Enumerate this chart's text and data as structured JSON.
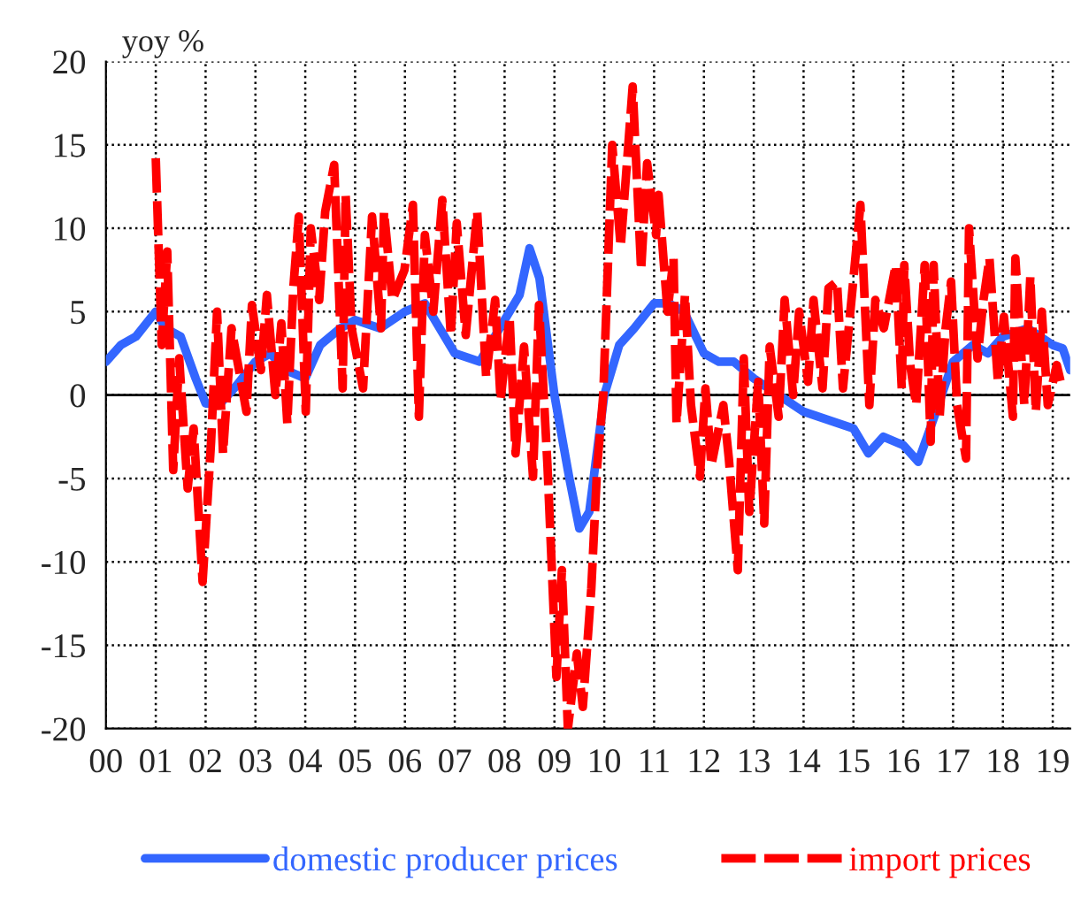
{
  "chart_data": {
    "type": "line",
    "ylabel": "yoy %",
    "xlim": [
      2000,
      2019.35
    ],
    "ylim": [
      -20,
      20
    ],
    "yticks": [
      -20,
      -15,
      -10,
      -5,
      0,
      5,
      10,
      15,
      20
    ],
    "xticks": [
      {
        "value": 2000,
        "label": "00"
      },
      {
        "value": 2001,
        "label": "01"
      },
      {
        "value": 2002,
        "label": "02"
      },
      {
        "value": 2003,
        "label": "03"
      },
      {
        "value": 2004,
        "label": "04"
      },
      {
        "value": 2005,
        "label": "05"
      },
      {
        "value": 2006,
        "label": "06"
      },
      {
        "value": 2007,
        "label": "07"
      },
      {
        "value": 2008,
        "label": "08"
      },
      {
        "value": 2009,
        "label": "09"
      },
      {
        "value": 2010,
        "label": "10"
      },
      {
        "value": 2011,
        "label": "11"
      },
      {
        "value": 2012,
        "label": "12"
      },
      {
        "value": 2013,
        "label": "13"
      },
      {
        "value": 2014,
        "label": "14"
      },
      {
        "value": 2015,
        "label": "15"
      },
      {
        "value": 2016,
        "label": "16"
      },
      {
        "value": 2017,
        "label": "17"
      },
      {
        "value": 2018,
        "label": "18"
      },
      {
        "value": 2019,
        "label": "19"
      }
    ],
    "grid": true,
    "legend": "bottom",
    "ref_lines": [
      {
        "axis": "y",
        "value": 0,
        "color": "#000000",
        "line_style": "solid"
      }
    ],
    "series": [
      {
        "name": "domestic producer prices",
        "color": "#3366ff",
        "line_style": "solid",
        "x": [
          2000.0,
          2000.3,
          2000.6,
          2001.0,
          2001.2,
          2001.5,
          2001.8,
          2002.0,
          2002.3,
          2002.6,
          2003.0,
          2003.3,
          2003.6,
          2004.0,
          2004.3,
          2004.7,
          2005.0,
          2005.5,
          2006.0,
          2006.4,
          2006.7,
          2007.0,
          2007.5,
          2008.0,
          2008.3,
          2008.5,
          2008.7,
          2009.0,
          2009.3,
          2009.5,
          2009.7,
          2010.0,
          2010.3,
          2010.6,
          2011.0,
          2011.3,
          2011.6,
          2012.0,
          2012.3,
          2012.6,
          2013.0,
          2013.5,
          2014.0,
          2014.5,
          2015.0,
          2015.3,
          2015.6,
          2016.0,
          2016.3,
          2016.6,
          2017.0,
          2017.4,
          2017.7,
          2018.0,
          2018.5,
          2019.0,
          2019.2,
          2019.35
        ],
        "values": [
          2,
          3,
          3.5,
          5,
          4,
          3.5,
          1,
          -0.5,
          -0.5,
          0.5,
          2,
          2.5,
          1.5,
          1,
          3,
          4,
          4.5,
          4,
          5,
          5.5,
          4,
          2.5,
          2,
          4.5,
          6,
          8.8,
          7,
          0,
          -5,
          -8,
          -7,
          0,
          3,
          4,
          5.5,
          5.5,
          5,
          2.5,
          2,
          2,
          1,
          0,
          -1,
          -1.5,
          -2,
          -3.5,
          -2.5,
          -3,
          -4,
          -1.5,
          2,
          3,
          2.5,
          3.5,
          4,
          3,
          2.8,
          1.5
        ]
      },
      {
        "name": "import prices",
        "color": "#ff0000",
        "line_style": "dashed",
        "x": [
          2001.0,
          2001.12,
          2001.23,
          2001.35,
          2001.47,
          2001.64,
          2001.76,
          2001.94,
          2002.11,
          2002.23,
          2002.35,
          2002.52,
          2002.82,
          2002.93,
          2003.11,
          2003.23,
          2003.4,
          2003.52,
          2003.64,
          2003.76,
          2003.87,
          2004.01,
          2004.11,
          2004.28,
          2004.4,
          2004.58,
          2004.75,
          2004.81,
          2004.93,
          2005.16,
          2005.34,
          2005.52,
          2005.58,
          2005.75,
          2005.99,
          2006.16,
          2006.28,
          2006.4,
          2006.57,
          2006.75,
          2006.92,
          2007.04,
          2007.22,
          2007.45,
          2007.63,
          2007.81,
          2007.92,
          2008.1,
          2008.22,
          2008.39,
          2008.57,
          2008.69,
          2008.86,
          2009.04,
          2009.15,
          2009.27,
          2009.45,
          2009.57,
          2009.74,
          2009.86,
          2009.98,
          2010.16,
          2010.33,
          2010.57,
          2010.74,
          2010.86,
          2011.04,
          2011.09,
          2011.27,
          2011.39,
          2011.45,
          2011.62,
          2011.74,
          2011.92,
          2012.03,
          2012.15,
          2012.39,
          2012.5,
          2012.68,
          2012.8,
          2012.91,
          2013.09,
          2013.21,
          2013.32,
          2013.5,
          2013.62,
          2013.79,
          2013.91,
          2014.09,
          2014.2,
          2014.38,
          2014.5,
          2014.67,
          2014.79,
          2014.97,
          2015.14,
          2015.32,
          2015.44,
          2015.61,
          2015.85,
          2015.97,
          2016.02,
          2016.14,
          2016.26,
          2016.43,
          2016.55,
          2016.61,
          2016.73,
          2016.85,
          2016.96,
          2017.08,
          2017.26,
          2017.32,
          2017.49,
          2017.61,
          2017.73,
          2017.9,
          2018.02,
          2018.2,
          2018.25,
          2018.43,
          2018.55,
          2018.66,
          2018.78,
          2018.9,
          2019.08,
          2019.19
        ],
        "values": [
          14.2,
          3,
          8.6,
          -4.5,
          2.2,
          -5.6,
          -2,
          -11.2,
          -2.8,
          5,
          -3.5,
          4,
          -1,
          5.4,
          1.5,
          6,
          0,
          4.3,
          -1.7,
          6.4,
          10.7,
          -1,
          10,
          5.7,
          11,
          13.8,
          0.4,
          12,
          4,
          0.4,
          10.7,
          4,
          11,
          5.7,
          7.5,
          11.4,
          -1.3,
          9.6,
          5,
          11.7,
          3.6,
          10.3,
          3.6,
          11,
          1.1,
          5.7,
          -0.3,
          4.7,
          -3.5,
          2.9,
          -4.9,
          5.4,
          -4.2,
          -16.9,
          -10.5,
          -20,
          -15.5,
          -18.7,
          -11.6,
          -4.2,
          0,
          15,
          8.9,
          18.5,
          7.5,
          13.9,
          9.6,
          12,
          5,
          8.2,
          -1.7,
          6,
          -0.6,
          -4.9,
          0.4,
          -4.2,
          -0.6,
          -3.8,
          -10.5,
          2.2,
          -7,
          0.8,
          -7.7,
          2.9,
          -1.3,
          5.7,
          0,
          5,
          0.8,
          5.7,
          0.4,
          6.4,
          6.8,
          0.4,
          6,
          11.4,
          -0.6,
          5.7,
          4,
          7.8,
          0.4,
          7.8,
          1.8,
          -0.6,
          7.8,
          -2.8,
          7.8,
          -1.3,
          4,
          6.8,
          -0.6,
          -3.8,
          10,
          2.2,
          5.7,
          8.2,
          0.8,
          4.7,
          -1.3,
          8.2,
          -0.6,
          7.1,
          -1,
          5,
          -0.6,
          1.8,
          0.4
        ]
      }
    ]
  }
}
